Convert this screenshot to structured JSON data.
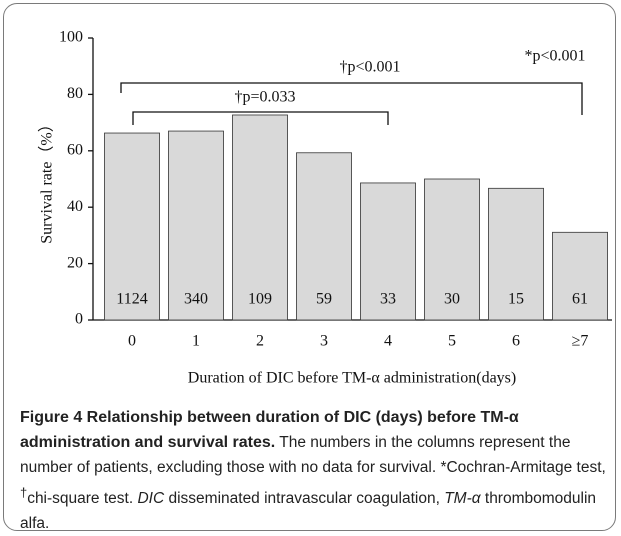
{
  "chart_data": {
    "type": "bar",
    "ylabel": "Survival rate（%）",
    "xlabel": "Duration of DIC before TM-α  administration(days)",
    "categories": [
      "0",
      "1",
      "2",
      "3",
      "4",
      "5",
      "6",
      "≥7"
    ],
    "values": [
      66.3,
      67,
      72.7,
      59.3,
      48.6,
      50,
      46.7,
      31.1
    ],
    "value_labels": [
      "1124",
      "340",
      "109",
      "59",
      "33",
      "30",
      "15",
      "61"
    ],
    "color": "#d9d9d9",
    "ylim": [
      0,
      100
    ],
    "yticks": [
      0,
      20,
      40,
      60,
      80,
      100
    ],
    "annotations": [
      "†p<0.001",
      "†p=0.033",
      "*p<0.001"
    ]
  },
  "caption": {
    "title": "Figure 4 Relationship between duration of DIC (days) before TM-α administration and survival rates.",
    "body": [
      "The numbers in the columns represent the number of patients, excluding those with no data for survival. *Cochran-Armitage test, ",
      "†",
      "chi-square test. ",
      "DIC",
      " disseminated intravascular coagulation, ",
      "TM-α",
      " thrombomodulin alfa."
    ]
  }
}
